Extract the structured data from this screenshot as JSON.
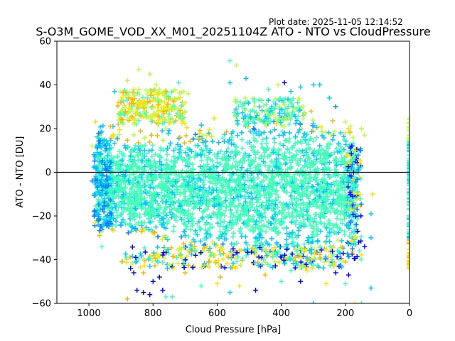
{
  "chart_data": {
    "type": "scatter",
    "title": "S-O3M_GOME_VOD_XX_M01_20251104Z ATO - NTO vs CloudPressure",
    "plot_date": "Plot date: 2025-11-05 12:14:52",
    "xlabel": "Cloud Pressure [hPa]",
    "ylabel": "ATO - NTO [DU]",
    "xlim": [
      1100,
      0
    ],
    "ylim": [
      -60,
      60
    ],
    "xticks": [
      1000,
      800,
      600,
      400,
      200,
      0
    ],
    "yticks": [
      -60,
      -40,
      -20,
      0,
      20,
      40,
      60
    ],
    "reference_line_y": 0,
    "marker": "+",
    "point_colors": [
      "#0000ff",
      "#0080ff",
      "#00c8ff",
      "#40ffb8",
      "#b8ff40",
      "#ffe000",
      "#ffb000"
    ],
    "core_cloud": {
      "x_range": [
        980,
        160
      ],
      "y_range": [
        -35,
        25
      ],
      "dominant_color": "#40ffb8",
      "edge_color": "#00c8ff"
    },
    "outliers": [
      {
        "x": 880,
        "y": 42,
        "c": "#b8ff40"
      },
      {
        "x": 860,
        "y": 38,
        "c": "#b8ff40"
      },
      {
        "x": 845,
        "y": 47,
        "c": "#b8ff40"
      },
      {
        "x": 810,
        "y": 45,
        "c": "#b8ff40"
      },
      {
        "x": 790,
        "y": 40,
        "c": "#b8ff40"
      },
      {
        "x": 760,
        "y": 37,
        "c": "#ffb000"
      },
      {
        "x": 720,
        "y": 41,
        "c": "#40ffb8"
      },
      {
        "x": 690,
        "y": 36,
        "c": "#b8ff40"
      },
      {
        "x": 920,
        "y": 37,
        "c": "#00c8ff"
      },
      {
        "x": 900,
        "y": 32,
        "c": "#ffb000"
      },
      {
        "x": 840,
        "y": 30,
        "c": "#ffe000"
      },
      {
        "x": 800,
        "y": 33,
        "c": "#ffe000"
      },
      {
        "x": 560,
        "y": 51,
        "c": "#40ffb8"
      },
      {
        "x": 540,
        "y": 49,
        "c": "#b8ff40"
      },
      {
        "x": 510,
        "y": 43,
        "c": "#00c8ff"
      },
      {
        "x": 560,
        "y": 41,
        "c": "#00c8ff"
      },
      {
        "x": 470,
        "y": 33,
        "c": "#40ffb8"
      },
      {
        "x": 440,
        "y": 38,
        "c": "#40ffb8"
      },
      {
        "x": 410,
        "y": 40,
        "c": "#b8ff40"
      },
      {
        "x": 390,
        "y": 41,
        "c": "#0000ff"
      },
      {
        "x": 370,
        "y": 37,
        "c": "#00c8ff"
      },
      {
        "x": 340,
        "y": 39,
        "c": "#00c8ff"
      },
      {
        "x": 300,
        "y": 40,
        "c": "#00c8ff"
      },
      {
        "x": 280,
        "y": 40,
        "c": "#00c8ff"
      },
      {
        "x": 250,
        "y": 34,
        "c": "#00c8ff"
      },
      {
        "x": 230,
        "y": 30,
        "c": "#0080ff"
      },
      {
        "x": 200,
        "y": 23,
        "c": "#b8ff40"
      },
      {
        "x": 190,
        "y": 20,
        "c": "#ffe000"
      },
      {
        "x": 180,
        "y": 12,
        "c": "#0000ff"
      },
      {
        "x": 150,
        "y": 20,
        "c": "#b8ff40"
      },
      {
        "x": 140,
        "y": 17,
        "c": "#b8ff40"
      },
      {
        "x": 880,
        "y": -58,
        "c": "#ffb000"
      },
      {
        "x": 850,
        "y": -54,
        "c": "#0000ff"
      },
      {
        "x": 830,
        "y": -55,
        "c": "#0000ff"
      },
      {
        "x": 810,
        "y": -56,
        "c": "#0000ff"
      },
      {
        "x": 800,
        "y": -50,
        "c": "#0000ff"
      },
      {
        "x": 780,
        "y": -48,
        "c": "#0000ff"
      },
      {
        "x": 770,
        "y": -54,
        "c": "#0000ff"
      },
      {
        "x": 760,
        "y": -57,
        "c": "#40ffb8"
      },
      {
        "x": 740,
        "y": -57,
        "c": "#40ffb8"
      },
      {
        "x": 860,
        "y": -46,
        "c": "#0000ff"
      },
      {
        "x": 870,
        "y": -44,
        "c": "#0000ff"
      },
      {
        "x": 830,
        "y": -46,
        "c": "#ffb000"
      },
      {
        "x": 700,
        "y": -46,
        "c": "#ffb000"
      },
      {
        "x": 650,
        "y": -52,
        "c": "#40ffb8"
      },
      {
        "x": 600,
        "y": -51,
        "c": "#ffe000"
      },
      {
        "x": 590,
        "y": -48,
        "c": "#ffb000"
      },
      {
        "x": 560,
        "y": -55,
        "c": "#00c8ff"
      },
      {
        "x": 530,
        "y": -52,
        "c": "#ffe000"
      },
      {
        "x": 480,
        "y": -54,
        "c": "#0000ff"
      },
      {
        "x": 450,
        "y": -47,
        "c": "#ffb000"
      },
      {
        "x": 400,
        "y": -50,
        "c": "#40ffb8"
      },
      {
        "x": 370,
        "y": -45,
        "c": "#40ffb8"
      },
      {
        "x": 340,
        "y": -50,
        "c": "#0000ff"
      },
      {
        "x": 320,
        "y": -45,
        "c": "#ffe000"
      },
      {
        "x": 300,
        "y": -60,
        "c": "#00c8ff"
      },
      {
        "x": 260,
        "y": -51,
        "c": "#ffe000"
      },
      {
        "x": 230,
        "y": -46,
        "c": "#0000ff"
      },
      {
        "x": 200,
        "y": -51,
        "c": "#40ffb8"
      },
      {
        "x": 190,
        "y": -47,
        "c": "#0000ff"
      },
      {
        "x": 170,
        "y": -60,
        "c": "#ffe000"
      },
      {
        "x": 150,
        "y": -60,
        "c": "#40ffb8"
      },
      {
        "x": 120,
        "y": -53,
        "c": "#00c8ff"
      },
      {
        "x": 120,
        "y": -30,
        "c": "#00c8ff"
      },
      {
        "x": 120,
        "y": -19,
        "c": "#00c8ff"
      },
      {
        "x": 115,
        "y": -10,
        "c": "#ffe000"
      },
      {
        "x": 140,
        "y": -34,
        "c": "#0000ff"
      },
      {
        "x": 960,
        "y": -34,
        "c": "#40ffb8"
      },
      {
        "x": 980,
        "y": -23,
        "c": "#ffe000"
      },
      {
        "x": 990,
        "y": -4,
        "c": "#0080ff"
      },
      {
        "x": 990,
        "y": 12,
        "c": "#b8ff40"
      }
    ],
    "zero_pressure_strip": {
      "x": 0,
      "y_range": [
        -44,
        25
      ]
    }
  }
}
